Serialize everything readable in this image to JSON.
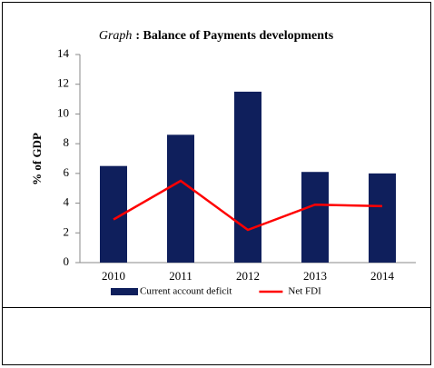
{
  "chart_data": {
    "type": "bar",
    "title_prefix": "Graph",
    "title": ": Balance of Payments developments",
    "y_label": "% of GDP",
    "categories": [
      "2010",
      "2011",
      "2012",
      "2013",
      "2014"
    ],
    "series": [
      {
        "name": "Current account deficit",
        "type": "bar",
        "color": "#0f1f5c",
        "values": [
          6.5,
          8.6,
          11.5,
          6.1,
          6.0
        ]
      },
      {
        "name": "Net FDI",
        "type": "line",
        "color": "#ff0000",
        "values": [
          2.9,
          5.5,
          2.2,
          3.9,
          3.8
        ]
      }
    ],
    "ylim": [
      0,
      14
    ],
    "yticks": [
      0,
      2,
      4,
      6,
      8,
      10,
      12,
      14
    ],
    "grid": false,
    "legend": "bottom"
  }
}
